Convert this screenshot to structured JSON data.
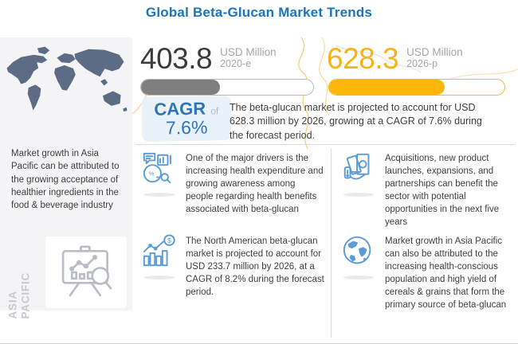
{
  "title": "Global Beta-Glucan Market Trends",
  "colors": {
    "title_blue": "#1B75BC",
    "cagr_blue": "#2E75B6",
    "bar_gray_fill": "#7F7F7F",
    "bar_yellow_fill": "#FFB60A",
    "stat_yellow_text": "#F9B316",
    "icon_blue": "#5B9BD5",
    "sidebar_bg": "#F4F4F6",
    "map_fill": "#5D6C84",
    "muted_label_gray": "#A6A6A6"
  },
  "sidebar": {
    "description": "Market growth in Asia Pacific can be attributed to the growing acceptance of healthier ingredients in the food & beverage industry",
    "region_label": {
      "line1": "ASIA",
      "line2": "PACIFIC"
    }
  },
  "stats": [
    {
      "value": "403.8",
      "unit": "USD Million",
      "period": "2020-e",
      "fill_percent": 46
    },
    {
      "value": "628.3",
      "unit": "USD Million",
      "period": "2026-p",
      "fill_percent": 66
    }
  ],
  "cagr": {
    "label": "CAGR",
    "connector": "of",
    "value": "7.6%"
  },
  "summary": "The beta-glucan market is projected to account for USD 628.3 million by 2026, growing at a CAGR of 7.6% during the forecast period.",
  "insights": [
    {
      "icon": "market-analysis-icon",
      "text": "One of the major drivers is the increasing health expenditure and growing awareness among people regarding health benefits associated with beta-glucan"
    },
    {
      "icon": "money-hand-icon",
      "text": "Acquisitions, new product launches, expansions, and partnerships can benefit the sector with potential opportunities in the next five years"
    },
    {
      "icon": "growth-bar-chart-icon",
      "text": "The North American beta-glucan market is projected to account for USD 233.7 million by 2026, at a CAGR of 8.2% during the forecast period."
    },
    {
      "icon": "globe-icon",
      "text": "Market growth in Asia Pacific can also be attributed to the increasing health-conscious population and high yield of cereals & grains that form the primary source of beta-glucan"
    }
  ]
}
